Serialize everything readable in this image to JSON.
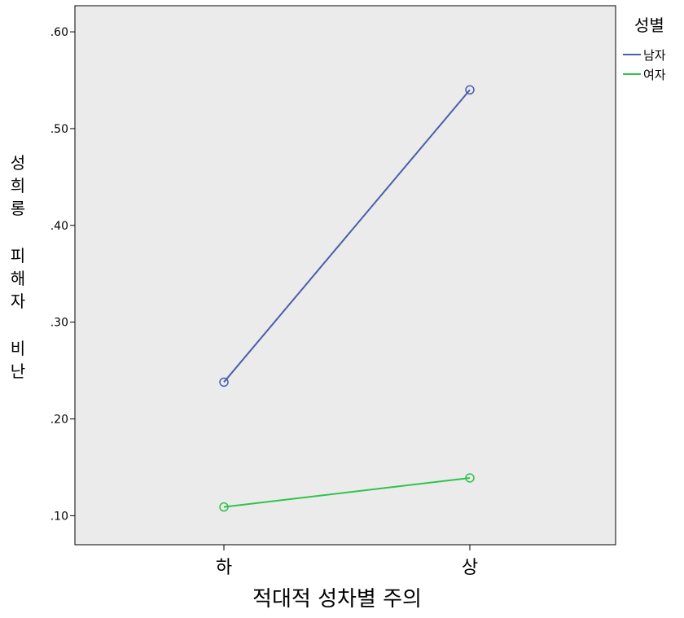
{
  "chart_data": {
    "type": "line",
    "title": "",
    "xlabel": "적대적 성차별 주의",
    "ylabel": "성희롱 피해자 비난",
    "categories": [
      "하",
      "상"
    ],
    "ylim": [
      0.07,
      0.627
    ],
    "yticks": [
      0.1,
      0.2,
      0.3,
      0.4,
      0.5,
      0.6
    ],
    "ytick_labels": [
      ".10",
      ".20",
      ".30",
      ".40",
      ".50",
      ".60"
    ],
    "legend_title": "성별",
    "legend_position": "outside-top-right",
    "grid": false,
    "marker": "open-circle",
    "plot_background": "#ebebeb",
    "series": [
      {
        "name": "남자",
        "values": [
          0.238,
          0.54
        ],
        "color": "#4b5fab"
      },
      {
        "name": "여자",
        "values": [
          0.109,
          0.139
        ],
        "color": "#2ec44a"
      }
    ]
  }
}
